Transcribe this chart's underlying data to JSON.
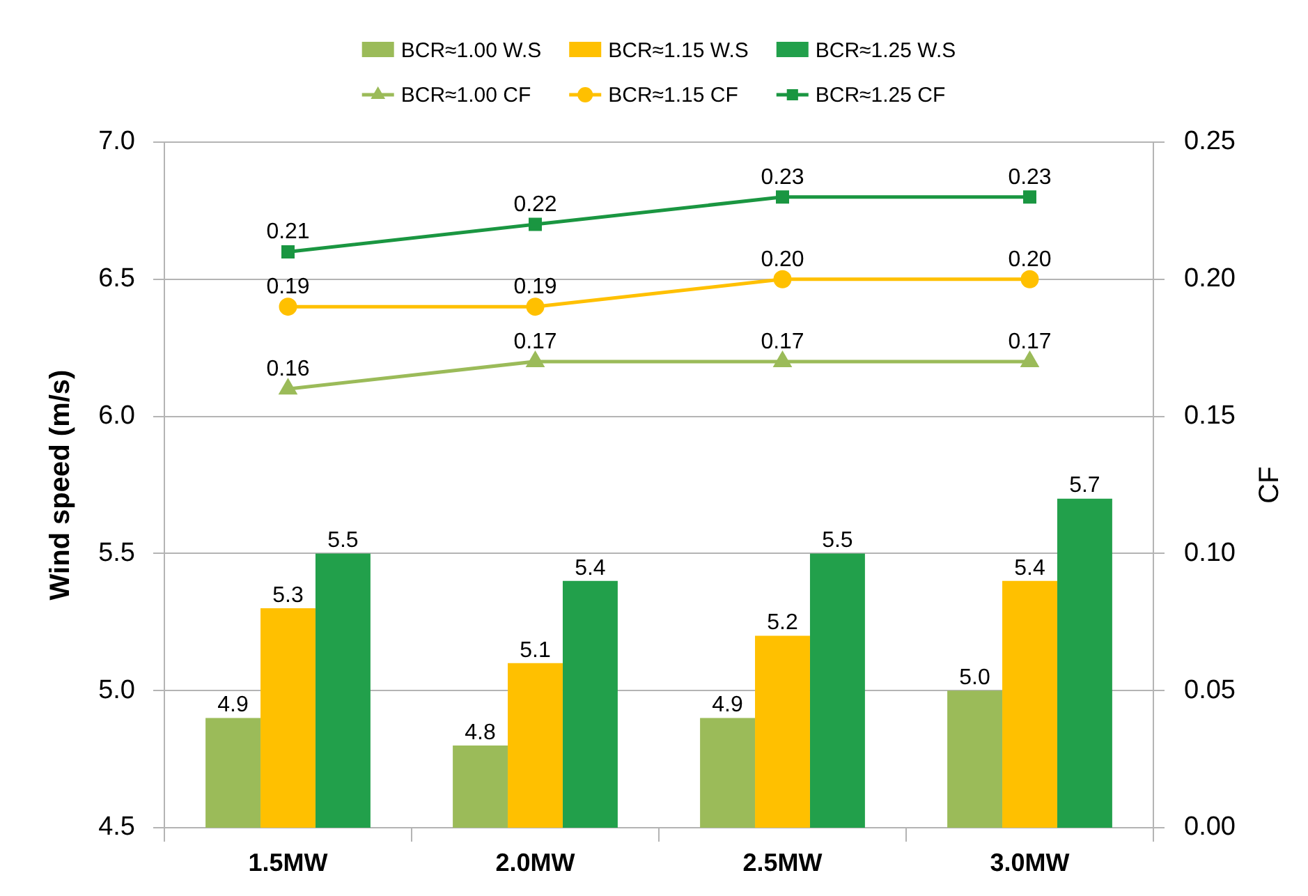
{
  "chart_data": {
    "type": "bar",
    "categories": [
      "1.5MW",
      "2.0MW",
      "2.5MW",
      "3.0MW"
    ],
    "ylabel": "Wind speed (m/s)",
    "y2label": "CF",
    "ylim": [
      4.5,
      7.0
    ],
    "yticks": [
      4.5,
      {
        "value": 5,
        "label": "5.0"
      },
      5.5,
      {
        "value": 6,
        "label": "6.0"
      },
      6.5,
      {
        "value": 7,
        "label": "7.0"
      }
    ],
    "y2lim": [
      0,
      0.25
    ],
    "y2ticks": [
      {
        "value": 0,
        "label": "0.00"
      },
      0.05,
      {
        "value": 0.1,
        "label": "0.10"
      },
      0.15,
      {
        "value": 0.2,
        "label": "0.20"
      },
      0.25
    ],
    "grid": "y",
    "legend": "top",
    "series": [
      {
        "name": "BCR≈1.00 W.S",
        "color": "#9bbb59",
        "values": [
          4.9,
          4.8,
          4.9,
          5.0
        ],
        "value_labels": [
          "4.9",
          "4.8",
          "4.9",
          "5.0"
        ]
      },
      {
        "name": "BCR≈1.15 W.S",
        "color": "#ffc000",
        "values": [
          5.3,
          5.1,
          5.2,
          5.4
        ],
        "value_labels": [
          "5.3",
          "5.1",
          "5.2",
          "5.4"
        ]
      },
      {
        "name": "BCR≈1.25 W.S",
        "color": "#22a04b",
        "values": [
          5.5,
          5.4,
          5.5,
          5.7
        ],
        "value_labels": [
          "5.5",
          "5.4",
          "5.5",
          "5.7"
        ]
      },
      {
        "name": "BCR≈1.00 CF",
        "type": "line",
        "axis": "y2",
        "marker": "triangle",
        "color": "#9bbb59",
        "values": [
          0.16,
          0.17,
          0.17,
          0.17
        ],
        "value_labels": [
          "0.16",
          "0.17",
          "0.17",
          "0.17"
        ]
      },
      {
        "name": "BCR≈1.15 CF",
        "type": "line",
        "axis": "y2",
        "marker": "circle",
        "color": "#ffc000",
        "values": [
          0.19,
          0.19,
          0.2,
          0.2
        ],
        "value_labels": [
          "0.19",
          "0.19",
          "0.20",
          "0.20"
        ]
      },
      {
        "name": "BCR≈1.25 CF",
        "type": "line",
        "axis": "y2",
        "marker": "square",
        "color": "#1a9641",
        "values": [
          0.21,
          0.22,
          0.23,
          0.23
        ],
        "value_labels": [
          "0.21",
          "0.22",
          "0.23",
          "0.23"
        ]
      }
    ]
  }
}
